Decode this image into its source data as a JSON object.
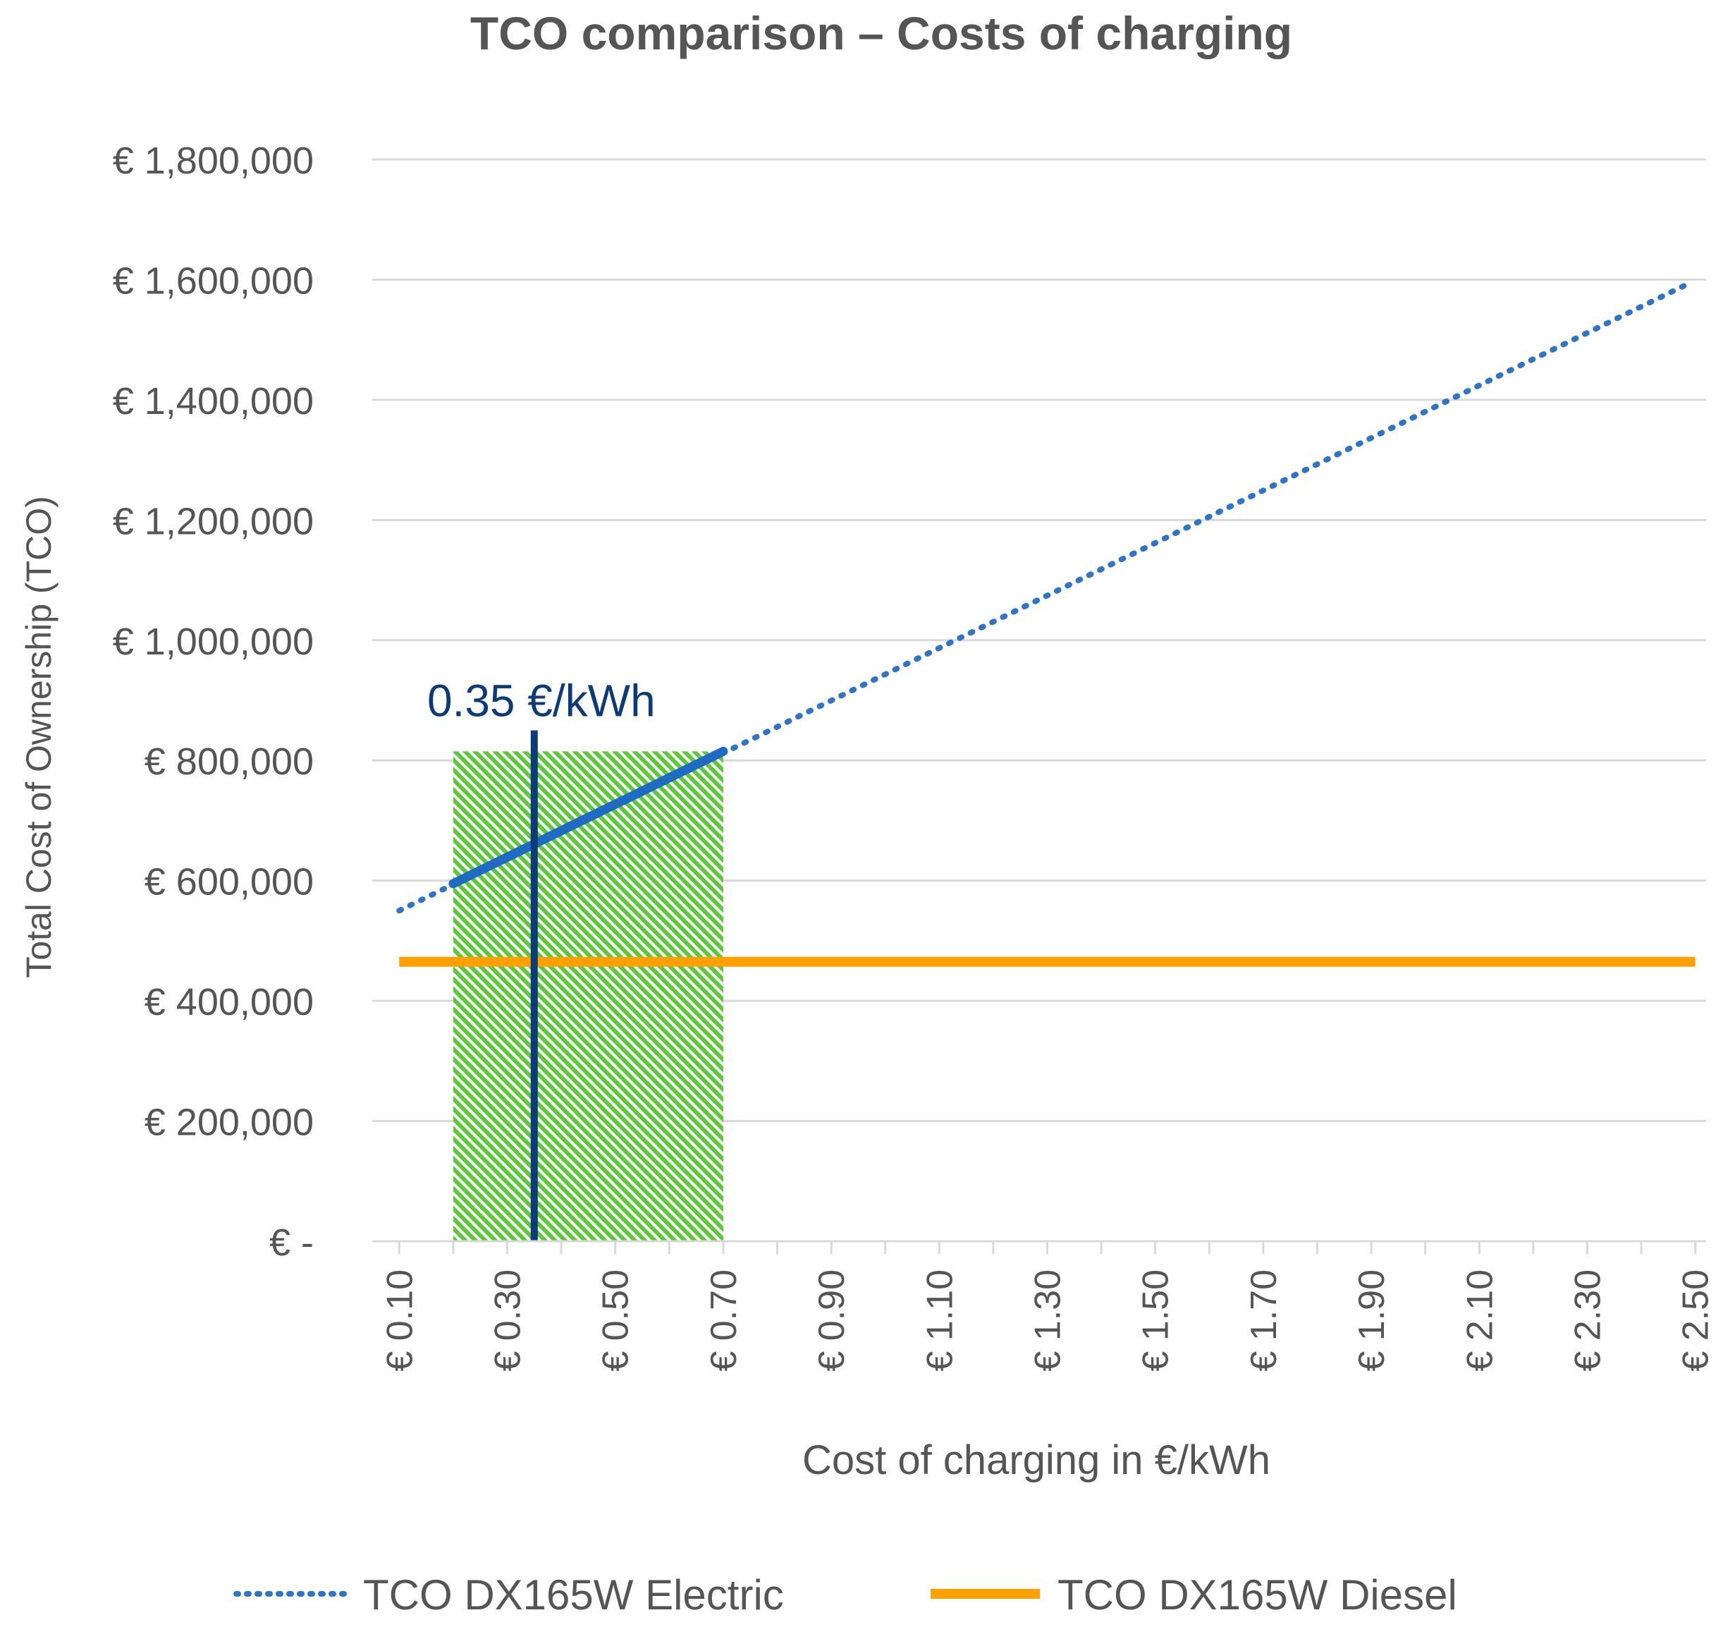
{
  "chart_data": {
    "type": "line",
    "title": "TCO comparison – Costs of charging",
    "xlabel": "Cost of charging in €/kWh",
    "ylabel": "Total Cost of Ownership (TCO)",
    "x_tick_labels": [
      "€ 0.10",
      "€ 0.30",
      "€ 0.50",
      "€ 0.70",
      "€ 0.90",
      "€ 1.10",
      "€ 1.30",
      "€ 1.50",
      "€ 1.70",
      "€ 1.90",
      "€ 2.10",
      "€ 2.30",
      "€ 2.50"
    ],
    "x_tick_values": [
      0.1,
      0.3,
      0.5,
      0.7,
      0.9,
      1.1,
      1.3,
      1.5,
      1.7,
      1.9,
      2.1,
      2.3,
      2.5
    ],
    "y_tick_labels": [
      "€ -",
      "€ 200,000",
      "€ 400,000",
      "€ 600,000",
      "€ 800,000",
      "€ 1,000,000",
      "€ 1,200,000",
      "€ 1,400,000",
      "€ 1,600,000",
      "€ 1,800,000"
    ],
    "y_tick_values": [
      0,
      200000,
      400000,
      600000,
      800000,
      1000000,
      1200000,
      1400000,
      1600000,
      1800000
    ],
    "xlim": [
      0.05,
      2.52
    ],
    "ylim": [
      0,
      1800000
    ],
    "grid": true,
    "legend_position": "bottom",
    "series": [
      {
        "name": "TCO DX165W Electric",
        "style": "dotted",
        "color": "#2E75C8",
        "x": [
          0.1,
          2.48
        ],
        "y": [
          550000,
          1590000
        ]
      },
      {
        "name": "TCO DX165W Diesel",
        "style": "solid",
        "color": "#FFA000",
        "x": [
          0.1,
          2.5
        ],
        "y": [
          465000,
          465000
        ]
      }
    ],
    "highlight_segment": {
      "x": [
        0.2,
        0.7
      ],
      "y": [
        595000,
        815000
      ],
      "color": "#1F6BC4"
    },
    "shaded_region": {
      "x_range": [
        0.2,
        0.7
      ],
      "y_range": [
        0,
        815000
      ],
      "color": "#5CC83A"
    },
    "reference_line": {
      "x": 0.35,
      "label": "0.35 €/kWh",
      "y_top": 850000,
      "color": "#0C3B78"
    }
  }
}
